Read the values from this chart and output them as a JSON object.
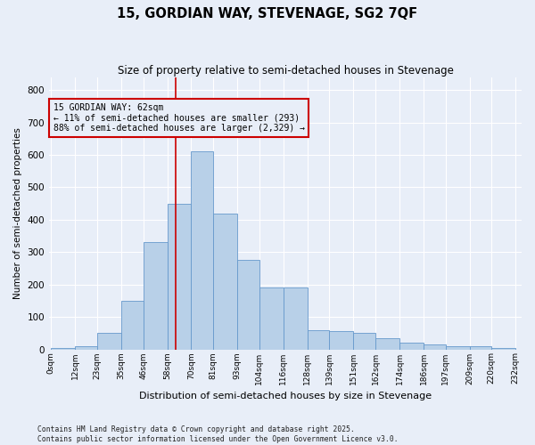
{
  "title": "15, GORDIAN WAY, STEVENAGE, SG2 7QF",
  "subtitle": "Size of property relative to semi-detached houses in Stevenage",
  "xlabel": "Distribution of semi-detached houses by size in Stevenage",
  "ylabel": "Number of semi-detached properties",
  "bar_color": "#b8d0e8",
  "bar_edge_color": "#6699cc",
  "background_color": "#e8eef8",
  "grid_color": "#ffffff",
  "bin_labels": [
    "0sqm",
    "12sqm",
    "23sqm",
    "35sqm",
    "46sqm",
    "58sqm",
    "70sqm",
    "81sqm",
    "93sqm",
    "104sqm",
    "116sqm",
    "128sqm",
    "139sqm",
    "151sqm",
    "162sqm",
    "174sqm",
    "186sqm",
    "197sqm",
    "209sqm",
    "220sqm",
    "232sqm"
  ],
  "bar_heights": [
    5,
    10,
    50,
    150,
    330,
    450,
    610,
    420,
    275,
    190,
    190,
    60,
    55,
    50,
    35,
    20,
    15,
    10,
    10,
    5
  ],
  "property_size": 62,
  "red_line_color": "#cc0000",
  "annotation_line1": "15 GORDIAN WAY: 62sqm",
  "annotation_line2": "← 11% of semi-detached houses are smaller (293)",
  "annotation_line3": "88% of semi-detached houses are larger (2,329) →",
  "ylim": [
    0,
    840
  ],
  "yticks": [
    0,
    100,
    200,
    300,
    400,
    500,
    600,
    700,
    800
  ],
  "footer_text": "Contains HM Land Registry data © Crown copyright and database right 2025.\nContains public sector information licensed under the Open Government Licence v3.0.",
  "bin_edges": [
    0,
    12,
    23,
    35,
    46,
    58,
    70,
    81,
    93,
    104,
    116,
    128,
    139,
    151,
    162,
    174,
    186,
    197,
    209,
    220,
    232
  ]
}
